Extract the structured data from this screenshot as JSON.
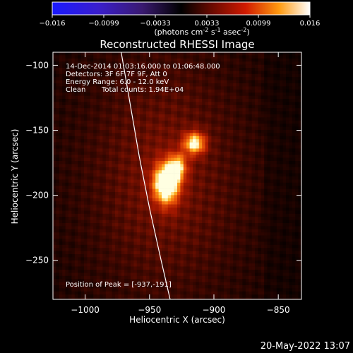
{
  "colorbar": {
    "ticks": [
      "-0.016",
      "-0.0099",
      "-0.0033",
      "0.0033",
      "0.0099",
      "0.016"
    ],
    "units_pre": "(photons cm",
    "units_exp1": "-2",
    "units_mid": " s",
    "units_exp2": "-1",
    "units_post": " asec",
    "units_exp3": "-2",
    "units_close": ")"
  },
  "annotations": {
    "time_range": "14-Dec-2014 01:03:16.000 to 01:06:48.000",
    "detectors": "Detectors: 3F 6F 7F 9F, Att 0",
    "energy": "Energy Range: 6.0 - 12.0 keV",
    "clean": "Clean",
    "total_counts": "Total counts: 1.94E+04",
    "peak": "Position of Peak = [-937,-191]"
  },
  "footer": {
    "date": "20-May-2022 13:07"
  },
  "chart_data": {
    "type": "heatmap",
    "title": "Reconstructed RHESSI Image",
    "xlabel": "Heliocentric X (arcsec)",
    "ylabel": "Heliocentric Y (arcsec)",
    "xlim": [
      -1025,
      -832
    ],
    "ylim": [
      -280,
      -90
    ],
    "x_ticks": [
      -1000,
      -950,
      -900,
      -850
    ],
    "y_ticks": [
      -100,
      -150,
      -200,
      -250
    ],
    "x_tick_labels": [
      "−1000",
      "−950",
      "−900",
      "−850"
    ],
    "y_tick_labels": [
      "−100",
      "−150",
      "−200",
      "−250"
    ],
    "color_range": [
      -0.016,
      0.016
    ],
    "colormap": "blue-black-red-yellow-white",
    "sources": [
      {
        "x": -937,
        "y": -191,
        "amplitude": 1.0,
        "sigma_x": 7,
        "sigma_y": 11
      },
      {
        "x": -928,
        "y": -178,
        "amplitude": 0.55,
        "sigma_x": 5,
        "sigma_y": 7
      },
      {
        "x": -915,
        "y": -160,
        "amplitude": 0.75,
        "sigma_x": 6,
        "sigma_y": 6
      }
    ],
    "limb_curve": [
      {
        "x": -972,
        "y": -90
      },
      {
        "x": -965,
        "y": -130
      },
      {
        "x": -958,
        "y": -170
      },
      {
        "x": -950,
        "y": -210
      },
      {
        "x": -941,
        "y": -250
      },
      {
        "x": -934,
        "y": -280
      }
    ]
  }
}
